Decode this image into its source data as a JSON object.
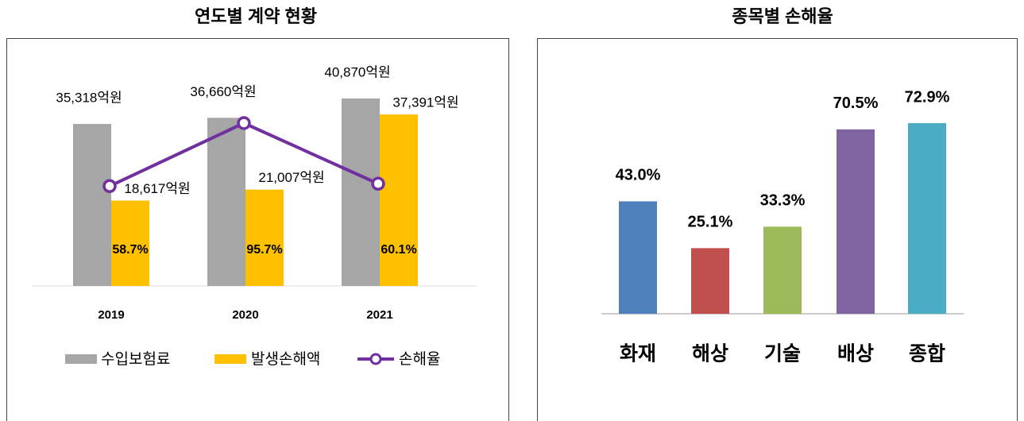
{
  "chart_data": [
    {
      "type": "bar",
      "title": "연도별 계약 현황",
      "categories": [
        "2019",
        "2020",
        "2021"
      ],
      "series": [
        {
          "name": "수입보험료",
          "color": "#a6a6a6",
          "values": [
            35318,
            36660,
            40870
          ],
          "value_labels": [
            "35,318억원",
            "36,660억원",
            "40,870억원"
          ]
        },
        {
          "name": "발생손해액",
          "color": "#ffc000",
          "values": [
            18617,
            21007,
            37391
          ],
          "value_labels": [
            "18,617억원",
            "21,007억원",
            "37,391억원"
          ]
        },
        {
          "name": "손해율",
          "type": "line",
          "axis": "y2",
          "color": "#7030a0",
          "values": [
            58.7,
            95.7,
            60.1
          ],
          "value_labels": [
            "58.7%",
            "95.7%",
            "60.1%"
          ]
        }
      ]
    },
    {
      "type": "bar",
      "title": "종목별 손해율",
      "categories": [
        "화재",
        "해상",
        "기술",
        "배상",
        "종합"
      ],
      "values": [
        43.0,
        25.1,
        33.3,
        70.5,
        72.9
      ],
      "value_labels": [
        "43.0%",
        "25.1%",
        "33.3%",
        "70.5%",
        "72.9%"
      ],
      "colors": [
        "#4f81bd",
        "#c0504d",
        "#9bbb59",
        "#8064a2",
        "#4bacc6"
      ]
    }
  ]
}
